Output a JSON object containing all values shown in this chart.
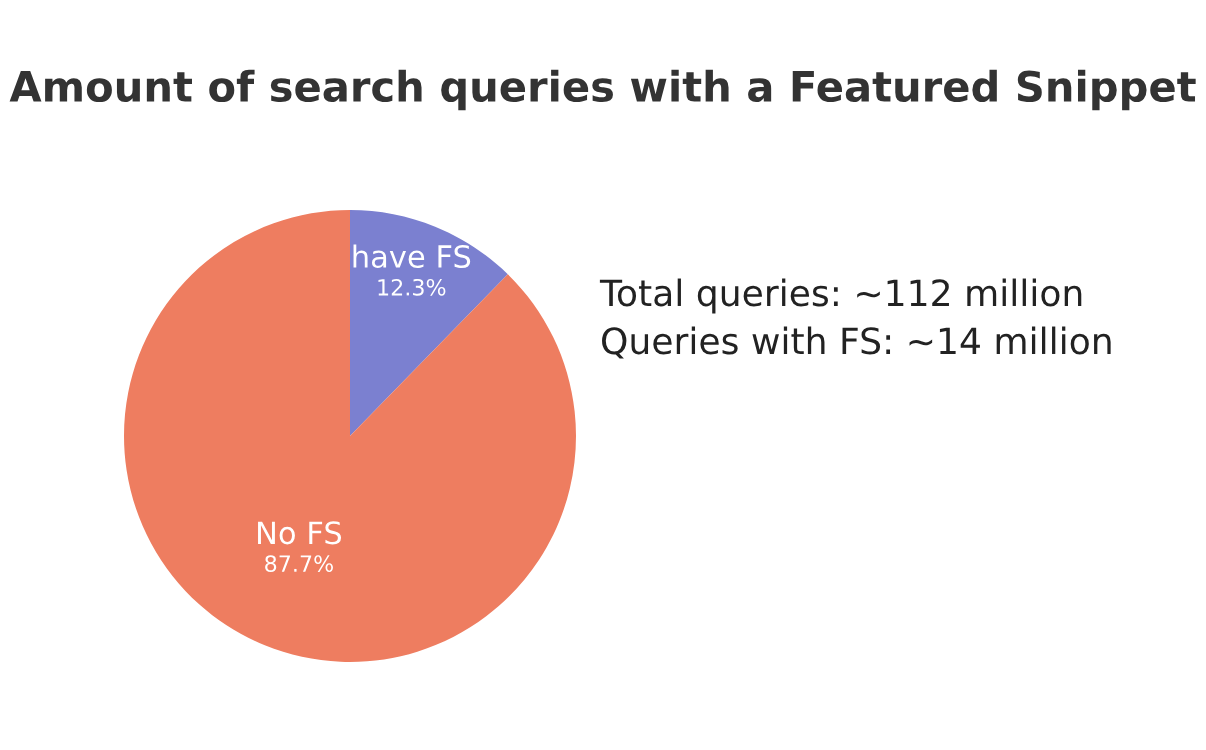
{
  "chart_data": {
    "type": "pie",
    "title": "Amount of search queries with a Featured Snippet",
    "categories": [
      "have FS",
      "No FS"
    ],
    "values": [
      12.3,
      87.7
    ],
    "value_labels": [
      "12.3%",
      "87.7%"
    ],
    "colors": [
      "#7b80d0",
      "#ee7d60"
    ],
    "legend": false,
    "annotations": [
      "Total queries: ~112 million",
      "Queries with FS: ~14 million"
    ]
  }
}
